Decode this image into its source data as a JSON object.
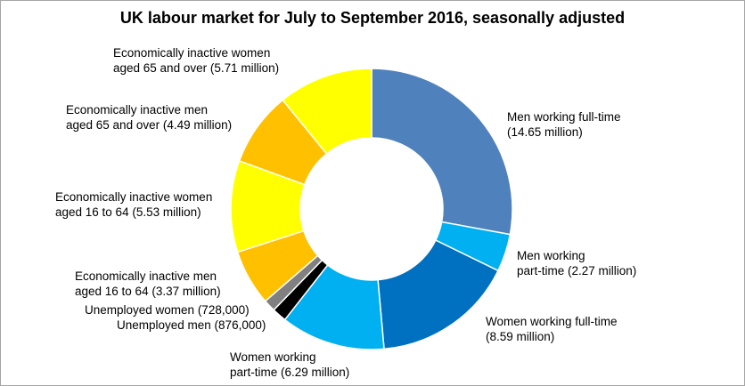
{
  "chart_data": {
    "type": "pie",
    "variant": "doughnut",
    "title": "UK labour  market for July to September 2016, seasonally  adjusted",
    "unit": "million",
    "slices": [
      {
        "key": "men_ft",
        "value": 14.65,
        "color": "#4f81bd",
        "line1": "Men working full-time",
        "line2": "(14.65 million)"
      },
      {
        "key": "men_pt",
        "value": 2.27,
        "color": "#00b0f0",
        "line1": "Men working",
        "line2": "part-time (2.27 million)"
      },
      {
        "key": "women_ft",
        "value": 8.59,
        "color": "#0070c0",
        "line1": "Women working full-time",
        "line2": "(8.59 million)"
      },
      {
        "key": "women_pt",
        "value": 6.29,
        "color": "#00b0f0",
        "line1": "Women working",
        "line2": "part-time (6.29 million)"
      },
      {
        "key": "unemp_men",
        "value": 0.876,
        "color": "#000000",
        "line1": "Unemployed men (876,000)",
        "line2": ""
      },
      {
        "key": "unemp_women",
        "value": 0.728,
        "color": "#808080",
        "line1": "Unemployed women (728,000)",
        "line2": ""
      },
      {
        "key": "inact_men_16_64",
        "value": 3.37,
        "color": "#ffc000",
        "line1": "Economically inactive men",
        "line2": "aged 16 to 64 (3.37 million)"
      },
      {
        "key": "inact_women_16_64",
        "value": 5.53,
        "color": "#ffff00",
        "line1": "Economically inactive women",
        "line2": "aged 16 to 64 (5.53 million)"
      },
      {
        "key": "inact_men_65",
        "value": 4.49,
        "color": "#ffc000",
        "line1": "Economically inactive men",
        "line2": "aged 65 and over (4.49 million)"
      },
      {
        "key": "inact_women_65",
        "value": 5.71,
        "color": "#ffff00",
        "line1": "Economically inactive women",
        "line2": "aged 65 and over (5.71 million)"
      }
    ],
    "legend": "none"
  }
}
